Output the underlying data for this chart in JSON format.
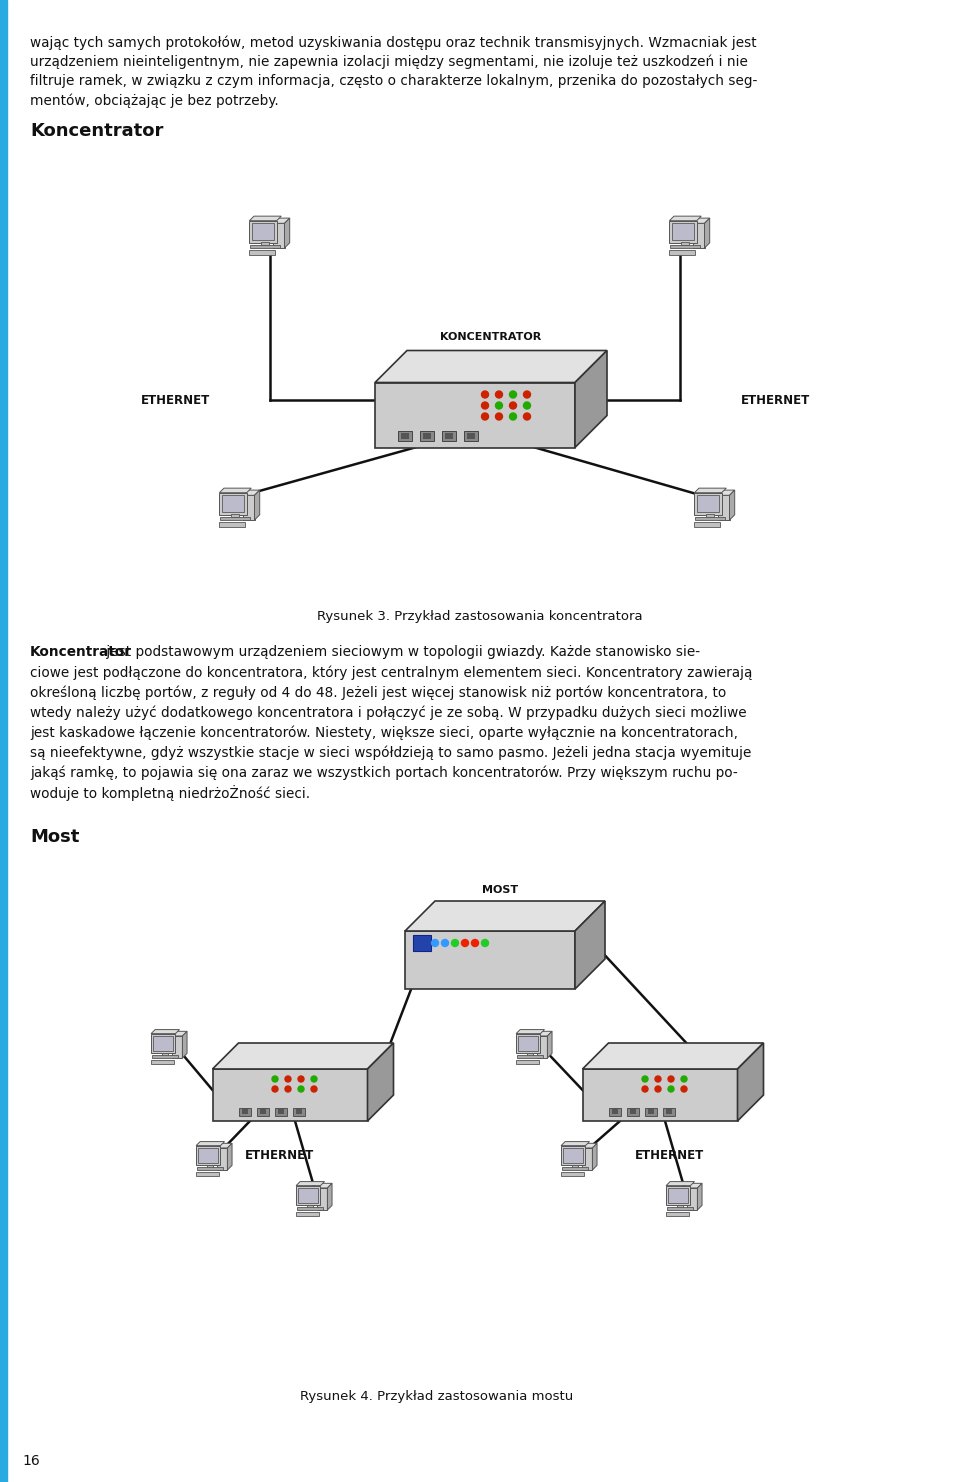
{
  "bg_color": "#ffffff",
  "left_border_color": "#29abe2",
  "page_number": "16",
  "para1_lines": [
    "wając tych samych protokołów, metod uzyskiwania dostępu oraz technik transmisyjnych. Wzmacniak jest",
    "urządzeniem nieinteligentnym, nie zapewnia izolacji między segmentami, nie izoluje też uszkodzeń i nie",
    "filtruje ramek, w związku z czym informacja, często o charakterze lokalnym, przenika do pozostałych seg-",
    "mentów, obciążając je bez potrzeby."
  ],
  "heading1": "Koncentrator",
  "fig1_caption": "Rysunek 3. Przykład zastosowania koncentratora",
  "body1_lines": [
    [
      true,
      "Koncentrator",
      " jest podstawowym urządzeniem sieciowym w topologii gwiazdy. Każde stanowisko sie-"
    ],
    [
      false,
      "",
      "ciowe jest podłączone do koncentratora, który jest centralnym elementem sieci. Koncentratory zawierają"
    ],
    [
      false,
      "",
      "określoną liczbę portów, z reguły od 4 do 48. Jeżeli jest więcej stanowisk niż portów koncentratora, to"
    ],
    [
      false,
      "",
      "wtedy należy użyć dodatkowego koncentratora i połączyć je ze sobą. W przypadku dużych sieci możliwe"
    ],
    [
      false,
      "",
      "jest kaskadowe łączenie koncentratorów. Niestety, większe sieci, oparte wyłącznie na koncentratorach,"
    ],
    [
      false,
      "",
      "są nieefektywne, gdyż wszystkie stacje w sieci współdzieją to samo pasmo. Jeżeli jedna stacja wyemituje"
    ],
    [
      false,
      "",
      "jakąś ramkę, to pojawia się ona zaraz we wszystkich portach koncentratorów. Przy większym ruchu po-"
    ],
    [
      false,
      "",
      "woduje to kompletną niedrżoŻność sieci."
    ]
  ],
  "heading2": "Most",
  "fig2_caption": "Rysunek 4. Przykład zastosowania mostu",
  "label_koncentrator": "KONCENTRATOR",
  "label_ethernet_left": "ETHERNET",
  "label_ethernet_right": "ETHERNET",
  "label_most": "MOST",
  "label_eth2_left": "ETHERNET",
  "label_eth2_right": "ETHERNET",
  "wire_color": "#111111",
  "text_color": "#111111"
}
